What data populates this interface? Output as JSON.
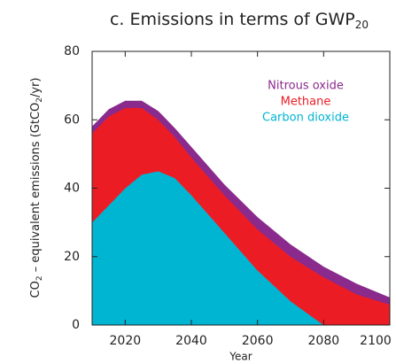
{
  "chart_data": {
    "type": "stacked_area",
    "title": "c. Emissions in terms of GWP",
    "title_subscript": "20",
    "ylabel_parts": [
      "CO",
      "2",
      " – equivalent emissions (GtCO",
      "2",
      "/yr)"
    ],
    "xlabel": "Year",
    "x": [
      2010,
      2015,
      2020,
      2025,
      2030,
      2035,
      2040,
      2050,
      2060,
      2070,
      2080,
      2090,
      2100
    ],
    "series": [
      {
        "name": "Carbon dioxide",
        "color": "#00b5d1",
        "values": [
          30,
          35,
          40,
          44,
          45,
          43,
          38,
          27,
          16,
          7,
          0,
          0,
          0
        ]
      },
      {
        "name": "Methane",
        "color": "#ec1c24",
        "values": [
          26,
          26,
          23.5,
          19.5,
          15,
          12,
          11,
          11,
          12,
          13,
          14,
          9,
          6
        ]
      },
      {
        "name": "Nitrous oxide",
        "color": "#8a2a8c",
        "values": [
          2,
          2,
          2,
          2,
          2.5,
          2.5,
          3,
          3,
          3.5,
          3.5,
          3,
          3,
          2
        ]
      }
    ],
    "xlim": [
      2010,
      2100
    ],
    "xticks": [
      2020,
      2040,
      2060,
      2080,
      2100
    ],
    "ylim": [
      0,
      80
    ],
    "yticks": [
      0,
      20,
      40,
      60,
      80
    ]
  }
}
